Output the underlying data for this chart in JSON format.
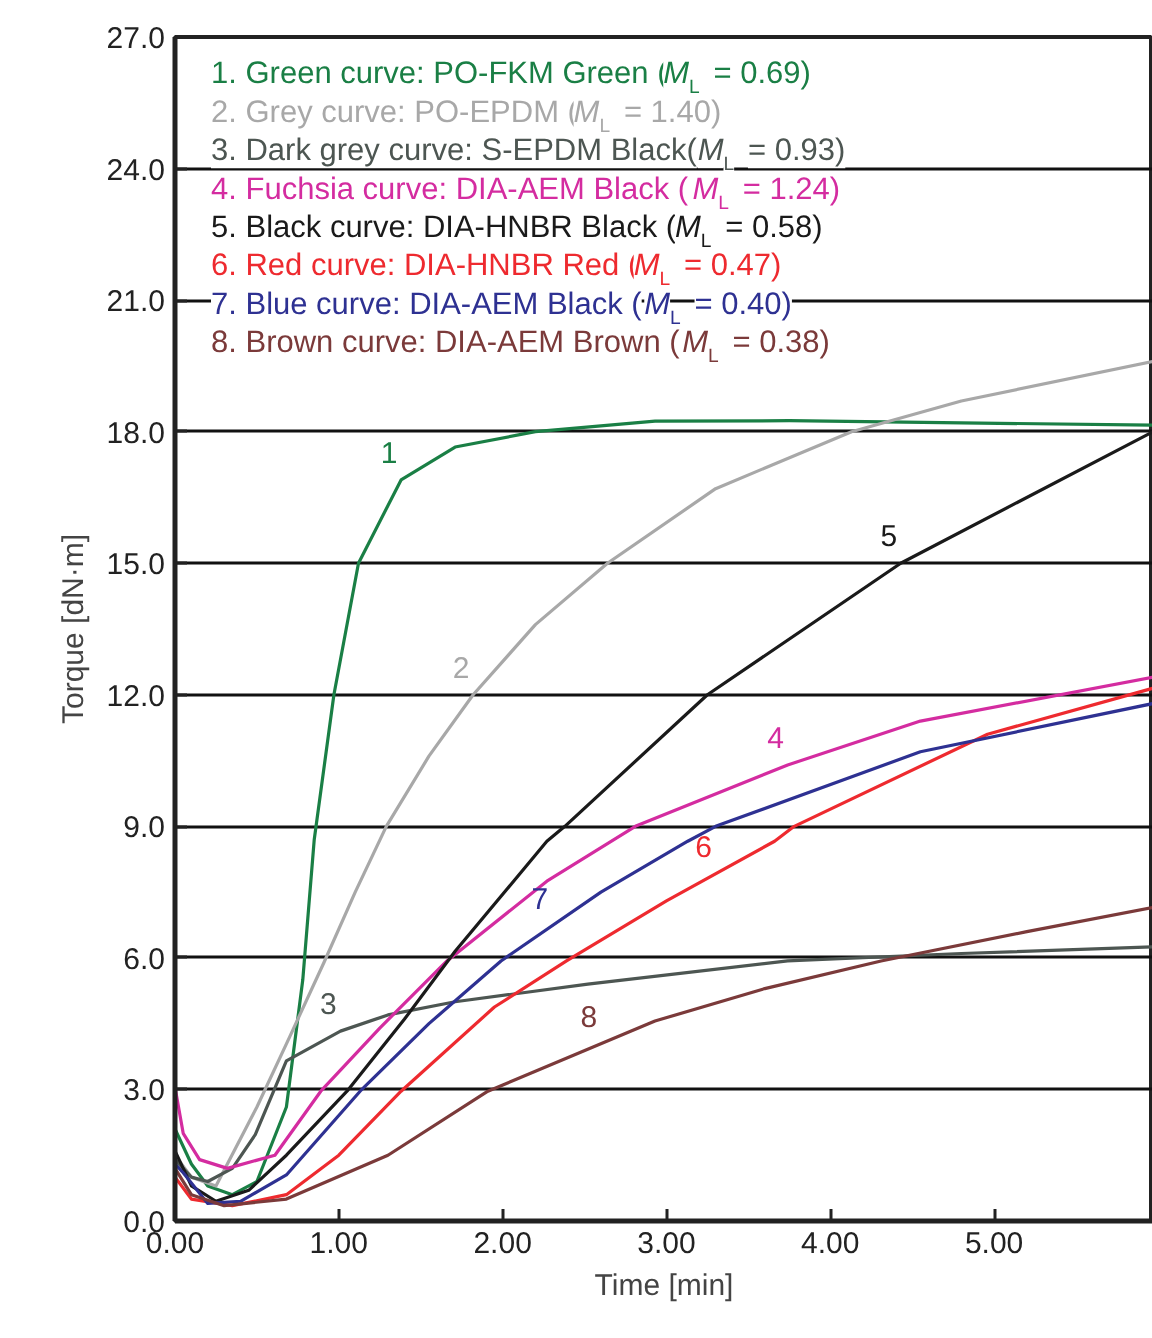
{
  "chart_data": {
    "type": "line",
    "xlabel": "Time [min]",
    "ylabel": "Torque [dN·m]",
    "xlim": [
      0,
      5.97
    ],
    "ylim": [
      0,
      27
    ],
    "xticks": [
      {
        "value": 0,
        "label": "0.00"
      },
      {
        "value": 1,
        "label": "1.00"
      },
      {
        "value": 2,
        "label": "2.00"
      },
      {
        "value": 3,
        "label": "3.00"
      },
      {
        "value": 4,
        "label": "4.00"
      },
      {
        "value": 5,
        "label": "5.00"
      }
    ],
    "yticks": [
      {
        "value": 0,
        "label": "0.0"
      },
      {
        "value": 3,
        "label": "3.0"
      },
      {
        "value": 6,
        "label": "6.0"
      },
      {
        "value": 9,
        "label": "9.0"
      },
      {
        "value": 12,
        "label": "12.0"
      },
      {
        "value": 15,
        "label": "15.0"
      },
      {
        "value": 18,
        "label": "18.0"
      },
      {
        "value": 21,
        "label": "21.0"
      },
      {
        "value": 24,
        "label": "24.0"
      },
      {
        "value": 27,
        "label": "27.0"
      }
    ],
    "grid": "y",
    "legend": "top left",
    "line_style": "solid",
    "series": [
      {
        "name": "1. Green curve: PO-FKM Green (M$_{L}$ = 0.69)",
        "color": "#1a7f45",
        "x": [
          0,
          0.1,
          0.2,
          0.35,
          0.5,
          0.68,
          0.78,
          0.85,
          0.97,
          1.12,
          1.38,
          1.71,
          2.2,
          2.93,
          3.75,
          4.8,
          5.97
        ],
        "values": [
          2.1,
          1.3,
          0.8,
          0.6,
          0.9,
          2.6,
          5.5,
          8.7,
          12.0,
          15.0,
          16.9,
          17.65,
          18.0,
          18.24,
          18.25,
          18.2,
          18.15
        ]
      },
      {
        "name": "2. Grey curve: PO-EPDM (M$_{L}$ = 1.40)",
        "color": "#a8a8a8",
        "x": [
          0,
          0.1,
          0.25,
          0.5,
          0.7,
          0.91,
          1.1,
          1.29,
          1.55,
          1.82,
          2.2,
          2.64,
          3.3,
          4.13,
          4.8,
          5.97
        ],
        "values": [
          1.5,
          1.0,
          0.8,
          2.6,
          4.2,
          5.9,
          7.5,
          9.0,
          10.6,
          12.0,
          13.6,
          15.0,
          16.7,
          18.0,
          18.7,
          19.6
        ]
      },
      {
        "name": "3. Dark grey curve: S-EPDM Black(M$_{L}$ = 0.93)",
        "color": "#4d5652",
        "x": [
          0,
          0.1,
          0.2,
          0.35,
          0.49,
          0.68,
          1.01,
          1.3,
          1.71,
          2.52,
          3.74,
          4.8,
          5.97
        ],
        "values": [
          1.4,
          1.0,
          0.9,
          1.2,
          1.97,
          3.65,
          4.33,
          4.7,
          5.0,
          5.4,
          5.93,
          6.1,
          6.25
        ]
      },
      {
        "name": "4. Fuchsia curve: DIA-AEM Black (M$_{L}$ = 1.24)",
        "color": "#d42ca0",
        "x": [
          0,
          0.05,
          0.15,
          0.32,
          0.61,
          0.89,
          1.25,
          1.66,
          2.27,
          2.81,
          3.74,
          4.55,
          5.97
        ],
        "values": [
          3.05,
          2.0,
          1.4,
          1.2,
          1.5,
          2.96,
          4.4,
          5.93,
          7.75,
          9.0,
          10.4,
          11.4,
          12.4
        ]
      },
      {
        "name": "5. Black curve: DIA-HNBR Black (M$_{L}$ = 0.58)",
        "color": "#1a1a1a",
        "x": [
          0,
          0.1,
          0.25,
          0.45,
          0.68,
          1.05,
          1.4,
          1.71,
          2.27,
          2.38,
          3.25,
          4.43,
          5.97
        ],
        "values": [
          1.6,
          0.8,
          0.45,
          0.7,
          1.5,
          2.96,
          4.6,
          6.15,
          8.66,
          9.0,
          12.0,
          15.0,
          18.0
        ]
      },
      {
        "name": "6. Red curve: DIA-HNBR Red (M$_{L}$ = 0.47)",
        "color": "#ee2a2f",
        "x": [
          0,
          0.1,
          0.35,
          0.68,
          1.0,
          1.38,
          1.95,
          2.39,
          3.0,
          3.66,
          3.78,
          4.96,
          5.97
        ],
        "values": [
          1.0,
          0.5,
          0.35,
          0.6,
          1.5,
          2.96,
          4.88,
          5.93,
          7.3,
          8.66,
          9.0,
          11.1,
          12.15
        ]
      },
      {
        "name": "7. Blue curve: DIA-AEM Black (M$_{L}$ = 0.40)",
        "color": "#2e3192",
        "x": [
          0,
          0.05,
          0.2,
          0.4,
          0.68,
          1.13,
          1.55,
          1.99,
          2.6,
          3.13,
          3.3,
          4.55,
          5.97
        ],
        "values": [
          1.3,
          1.1,
          0.4,
          0.45,
          1.05,
          2.96,
          4.5,
          5.93,
          7.5,
          8.66,
          9.0,
          10.7,
          11.8
        ]
      },
      {
        "name": "8. Brown curve: DIA-AEM Brown (M$_{L}$ = 0.38)",
        "color": "#7b3a3a",
        "x": [
          0,
          0.1,
          0.3,
          0.68,
          1.3,
          1.91,
          2.93,
          3.6,
          4.31,
          5.2,
          5.97
        ],
        "values": [
          1.2,
          0.6,
          0.35,
          0.5,
          1.5,
          2.96,
          4.56,
          5.3,
          5.93,
          6.6,
          7.15
        ]
      }
    ],
    "annotations": [
      {
        "text": "1",
        "x": 1.38,
        "y": 16.9
      },
      {
        "text": "2",
        "x": 1.82,
        "y": 12.0
      },
      {
        "text": "3",
        "x": 1.01,
        "y": 4.33
      },
      {
        "text": "4",
        "x": 3.74,
        "y": 10.4
      },
      {
        "text": "5",
        "x": 4.43,
        "y": 15.0
      },
      {
        "text": "6",
        "x": 3.3,
        "y": 7.92
      },
      {
        "text": "7",
        "x": 2.3,
        "y": 6.72
      },
      {
        "text": "8",
        "x": 2.6,
        "y": 4.04
      }
    ]
  }
}
